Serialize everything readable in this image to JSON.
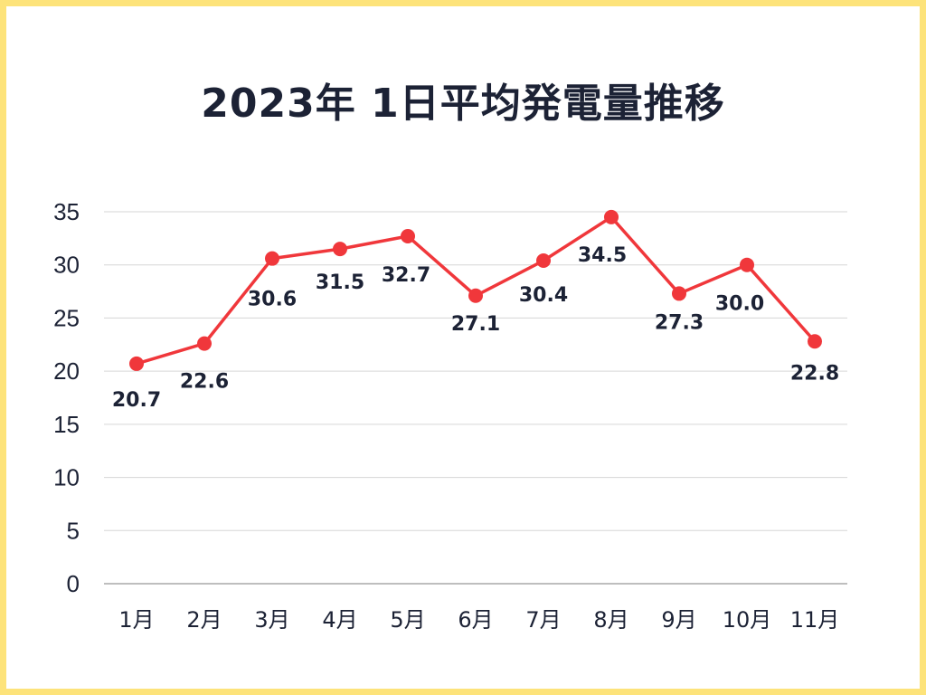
{
  "chart_data": {
    "type": "line",
    "title": "2023年 1日平均発電量推移",
    "xlabel": "",
    "ylabel": "",
    "categories": [
      "1月",
      "2月",
      "3月",
      "4月",
      "5月",
      "6月",
      "7月",
      "8月",
      "9月",
      "10月",
      "11月"
    ],
    "values": [
      20.7,
      22.6,
      30.6,
      31.5,
      32.7,
      27.1,
      30.4,
      34.5,
      27.3,
      30.0,
      22.8
    ],
    "data_labels": [
      "20.7",
      "22.6",
      "30.6",
      "31.5",
      "32.7",
      "27.1",
      "30.4",
      "34.5",
      "27.3",
      "30.0",
      "22.8"
    ],
    "ylim": [
      0,
      35
    ],
    "yticks": [
      "0",
      "5",
      "10",
      "15",
      "20",
      "25",
      "30",
      "35"
    ],
    "grid": true,
    "legend": "none",
    "colors": {
      "line": "#f0373b",
      "grid": "#d6d6d6",
      "text": "#1c2235",
      "border": "#fde37a"
    }
  }
}
